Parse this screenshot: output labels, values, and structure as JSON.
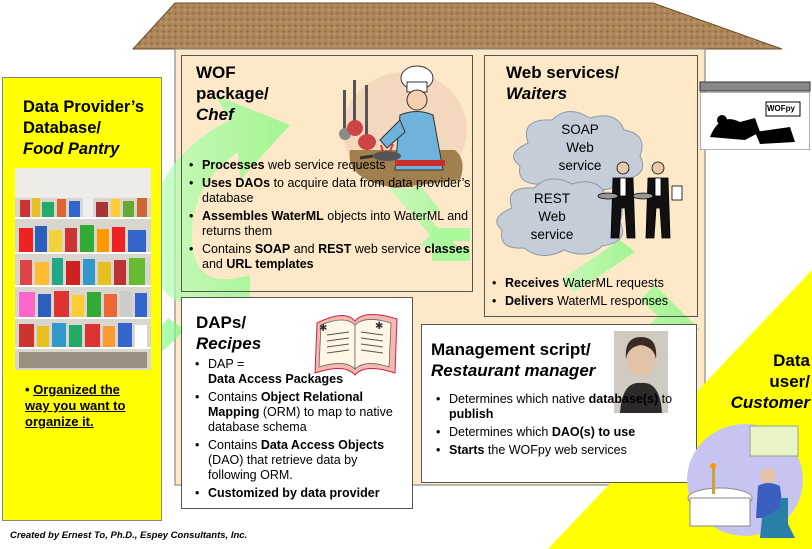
{
  "provider": {
    "title_line1": "Data Provider’s",
    "title_line2": "Database/",
    "title_line3": "Food Pantry",
    "note_bullet": "•",
    "note_line1": "Organized the",
    "note_line2": "way you want to",
    "note_line3": "organize it."
  },
  "wof": {
    "title_line1": "WOF",
    "title_line2": "package/",
    "title_line3": "Chef",
    "b1_strong": "Processes",
    "b1_rest": " web service requests",
    "b2_strong": "Uses DAOs",
    "b2_rest": " to acquire data from data provider’s database",
    "b3_strong": "Assembles WaterML",
    "b3_rest": " objects into WaterML and returns them",
    "b4_pre": "Contains ",
    "b4_soap": "SOAP",
    "b4_and": " and ",
    "b4_rest": "REST",
    "b4_mid": " web service ",
    "b4_classes": "classes",
    "b4_and2": " and ",
    "b4_url": "URL templates"
  },
  "web": {
    "title_line1": "Web services/",
    "title_line2": "Waiters",
    "cloud1_line1": "SOAP",
    "cloud1_line2": "Web",
    "cloud1_line3": "service",
    "cloud2_line1": "REST",
    "cloud2_line2": "Web",
    "cloud2_line3": "service",
    "b1_strong": "Receives",
    "b1_rest": " WaterML requests",
    "b2_strong": "Delivers",
    "b2_rest": " WaterML responses"
  },
  "daps": {
    "title_line1": "DAPs/",
    "title_line2": "Recipes",
    "b1_pre": "DAP =",
    "b1_strong": "Data Access Packages",
    "b2_pre": "Contains ",
    "b2_strong": "Object Relational Mapping",
    "b2_rest": " (ORM) to map to native database schema",
    "b3_pre": "Contains ",
    "b3_strong": "Data Access Objects",
    "b3_rest": " (DAO) that retrieve data by following ORM.",
    "b4_strong": "Customized by data provider"
  },
  "mgmt": {
    "title_line1": "Management script/",
    "title_line2": "Restaurant manager",
    "b1_pre": "Determines which native ",
    "b1_strong": "database(s)",
    "b1_mid": " to ",
    "b1_strong2": "publish",
    "b2_pre": "Determines which ",
    "b2_strong": "DAO(s) to use",
    "b3_strong": "Starts",
    "b3_rest": " the WOFpy web services"
  },
  "user": {
    "line1": "Data",
    "line2": "user/",
    "line3": "Customer"
  },
  "logo_text": "WOFpy",
  "credit": "Created by Ernest To, Ph.D., Espey Consultants, Inc.",
  "colors": {
    "yellow": "#ffff00",
    "roof": "#b08a5e",
    "house_wall": "#fde9c8",
    "arrow_green": "#88ff88",
    "cloud": "#c4cdd8"
  }
}
